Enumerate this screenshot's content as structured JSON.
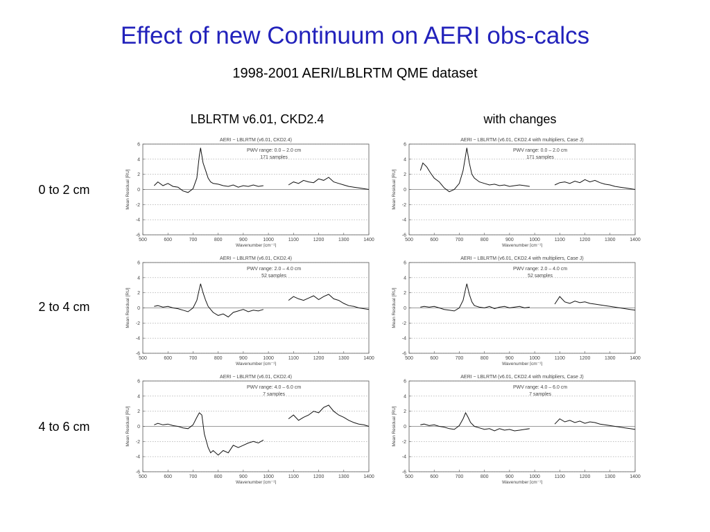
{
  "slide": {
    "title": "Effect of new Continuum on AERI obs-calcs",
    "subtitle": "1998-2001 AERI/LBLRTM QME dataset",
    "columns": [
      "LBLRTM v6.01, CKD2.4",
      "with changes"
    ],
    "rows": [
      "0 to 2 cm",
      "2 to 4 cm",
      "4 to 6 cm"
    ]
  },
  "chart_data": [
    {
      "type": "line",
      "title": "AERI − LBLRTM (v6.01, CKD2.4)",
      "annotation": [
        "PWV range: 0.0 – 2.0 cm",
        "171 samples"
      ],
      "xlabel": "Wavenumber [cm⁻¹]",
      "ylabel": "Mean Residual [RU]",
      "xlim": [
        500,
        1400
      ],
      "ylim": [
        -6,
        6
      ],
      "x": [
        545,
        560,
        580,
        600,
        620,
        640,
        660,
        680,
        700,
        715,
        725,
        730,
        740,
        750,
        760,
        770,
        780,
        800,
        820,
        840,
        860,
        880,
        900,
        920,
        940,
        960,
        980,
        1080,
        1100,
        1120,
        1140,
        1160,
        1180,
        1200,
        1220,
        1240,
        1260,
        1280,
        1300,
        1320,
        1340,
        1360,
        1380,
        1400
      ],
      "y": [
        0.5,
        1.0,
        0.5,
        0.8,
        0.4,
        0.3,
        -0.2,
        -0.4,
        0.1,
        1.5,
        4.5,
        5.5,
        3.5,
        2.5,
        1.5,
        1.0,
        0.8,
        0.7,
        0.5,
        0.4,
        0.6,
        0.3,
        0.5,
        0.4,
        0.6,
        0.4,
        0.5,
        0.6,
        1.0,
        0.8,
        1.2,
        1.0,
        0.9,
        1.4,
        1.2,
        1.6,
        1.0,
        0.8,
        0.6,
        0.4,
        0.3,
        0.2,
        0.1,
        0.0
      ]
    },
    {
      "type": "line",
      "title": "AERI − LBLRTM (v6.01, CKD2.4 with multipliers, Case J)",
      "annotation": [
        "PWV range: 0.0 – 2.0 cm",
        "171 samples"
      ],
      "xlabel": "Wavenumber [cm⁻¹]",
      "ylabel": "Mean Residual [RU]",
      "xlim": [
        500,
        1400
      ],
      "ylim": [
        -6,
        6
      ],
      "x": [
        545,
        555,
        570,
        585,
        600,
        620,
        640,
        660,
        680,
        700,
        715,
        725,
        730,
        740,
        750,
        760,
        780,
        800,
        820,
        840,
        860,
        880,
        900,
        920,
        940,
        960,
        980,
        1080,
        1100,
        1120,
        1140,
        1160,
        1180,
        1200,
        1220,
        1240,
        1260,
        1280,
        1300,
        1320,
        1340,
        1360,
        1380,
        1400
      ],
      "y": [
        2.5,
        3.5,
        3.0,
        2.2,
        1.5,
        1.0,
        0.2,
        -0.3,
        0.0,
        0.8,
        2.5,
        4.5,
        5.5,
        3.5,
        2.0,
        1.5,
        1.0,
        0.8,
        0.6,
        0.7,
        0.5,
        0.6,
        0.4,
        0.5,
        0.6,
        0.5,
        0.4,
        0.6,
        0.9,
        1.0,
        0.8,
        1.1,
        0.9,
        1.3,
        1.0,
        1.2,
        0.9,
        0.7,
        0.6,
        0.4,
        0.3,
        0.2,
        0.1,
        0.0
      ]
    },
    {
      "type": "line",
      "title": "AERI − LBLRTM (v6.01, CKD2.4)",
      "annotation": [
        "PWV range: 2.0 – 4.0 cm",
        "52 samples"
      ],
      "xlabel": "Wavenumber [cm⁻¹]",
      "ylabel": "Mean Residual [RU]",
      "xlim": [
        500,
        1400
      ],
      "ylim": [
        -6,
        6
      ],
      "x": [
        545,
        560,
        580,
        600,
        620,
        640,
        660,
        680,
        700,
        715,
        725,
        730,
        740,
        750,
        760,
        770,
        780,
        800,
        820,
        840,
        860,
        880,
        900,
        920,
        940,
        960,
        980,
        1080,
        1100,
        1120,
        1140,
        1160,
        1180,
        1200,
        1220,
        1240,
        1260,
        1280,
        1300,
        1320,
        1340,
        1360,
        1380,
        1400
      ],
      "y": [
        0.2,
        0.3,
        0.1,
        0.2,
        0.0,
        -0.1,
        -0.3,
        -0.5,
        0.0,
        1.0,
        2.5,
        3.2,
        2.0,
        1.0,
        0.2,
        -0.2,
        -0.6,
        -1.0,
        -0.8,
        -1.2,
        -0.6,
        -0.4,
        -0.2,
        -0.5,
        -0.3,
        -0.4,
        -0.2,
        1.0,
        1.5,
        1.2,
        1.0,
        1.3,
        1.6,
        1.1,
        1.5,
        1.8,
        1.2,
        1.0,
        0.6,
        0.3,
        0.2,
        0.0,
        -0.1,
        -0.2
      ]
    },
    {
      "type": "line",
      "title": "AERI − LBLRTM (v6.01, CKD2.4 with multipliers, Case J)",
      "annotation": [
        "PWV range: 2.0 – 4.0 cm",
        "52 samples"
      ],
      "xlabel": "Wavenumber [cm⁻¹]",
      "ylabel": "Mean Residual [RU]",
      "xlim": [
        500,
        1400
      ],
      "ylim": [
        -6,
        6
      ],
      "x": [
        545,
        560,
        580,
        600,
        620,
        640,
        660,
        680,
        700,
        715,
        725,
        730,
        740,
        750,
        760,
        780,
        800,
        820,
        840,
        860,
        880,
        900,
        920,
        940,
        960,
        980,
        1080,
        1100,
        1120,
        1140,
        1160,
        1180,
        1200,
        1220,
        1240,
        1260,
        1280,
        1300,
        1320,
        1340,
        1360,
        1380,
        1400
      ],
      "y": [
        0.1,
        0.2,
        0.1,
        0.2,
        0.0,
        -0.2,
        -0.3,
        -0.4,
        0.0,
        1.0,
        2.5,
        3.2,
        1.8,
        0.8,
        0.3,
        0.1,
        0.0,
        0.2,
        -0.1,
        0.1,
        0.2,
        0.0,
        0.1,
        0.2,
        0.0,
        0.1,
        0.5,
        1.5,
        0.8,
        0.6,
        0.9,
        0.7,
        0.8,
        0.6,
        0.5,
        0.4,
        0.3,
        0.2,
        0.1,
        0.0,
        -0.1,
        -0.2,
        -0.3
      ]
    },
    {
      "type": "line",
      "title": "AERI − LBLRTM (v6.01, CKD2.4)",
      "annotation": [
        "PWV range: 4.0 – 6.0 cm",
        "7 samples"
      ],
      "xlabel": "Wavenumber [cm⁻¹]",
      "ylabel": "Mean Residual [RU]",
      "xlim": [
        500,
        1400
      ],
      "ylim": [
        -6,
        6
      ],
      "x": [
        545,
        560,
        580,
        600,
        620,
        640,
        660,
        680,
        700,
        715,
        725,
        735,
        745,
        760,
        770,
        780,
        800,
        820,
        840,
        860,
        880,
        900,
        920,
        940,
        960,
        980,
        1080,
        1100,
        1120,
        1140,
        1160,
        1180,
        1200,
        1220,
        1240,
        1260,
        1280,
        1300,
        1320,
        1340,
        1360,
        1380,
        1400
      ],
      "y": [
        0.2,
        0.4,
        0.2,
        0.3,
        0.1,
        0.0,
        -0.2,
        -0.3,
        0.2,
        1.2,
        1.8,
        1.5,
        -1.0,
        -2.8,
        -3.5,
        -3.2,
        -3.8,
        -3.2,
        -3.5,
        -2.5,
        -2.8,
        -2.5,
        -2.2,
        -2.0,
        -2.2,
        -1.8,
        1.0,
        1.5,
        0.8,
        1.2,
        1.5,
        2.0,
        1.8,
        2.5,
        2.8,
        2.0,
        1.5,
        1.2,
        0.8,
        0.5,
        0.3,
        0.2,
        0.0
      ]
    },
    {
      "type": "line",
      "title": "AERI − LBLRTM (v6.01, CKD2.4 with multipliers, Case J)",
      "annotation": [
        "PWV range: 4.0 – 6.0 cm",
        "7 samples"
      ],
      "xlabel": "Wavenumber [cm⁻¹]",
      "ylabel": "Mean Residual [RU]",
      "xlim": [
        500,
        1400
      ],
      "ylim": [
        -6,
        6
      ],
      "x": [
        545,
        560,
        580,
        600,
        620,
        640,
        660,
        680,
        700,
        715,
        725,
        735,
        745,
        760,
        780,
        800,
        820,
        840,
        860,
        880,
        900,
        920,
        940,
        960,
        980,
        1080,
        1100,
        1120,
        1140,
        1160,
        1180,
        1200,
        1220,
        1240,
        1260,
        1280,
        1300,
        1320,
        1340,
        1360,
        1380,
        1400
      ],
      "y": [
        0.2,
        0.3,
        0.1,
        0.2,
        0.0,
        -0.1,
        -0.3,
        -0.4,
        0.1,
        1.0,
        1.8,
        1.2,
        0.5,
        0.0,
        -0.2,
        -0.4,
        -0.3,
        -0.6,
        -0.3,
        -0.5,
        -0.4,
        -0.6,
        -0.5,
        -0.4,
        -0.3,
        0.3,
        1.0,
        0.6,
        0.8,
        0.5,
        0.7,
        0.4,
        0.6,
        0.5,
        0.3,
        0.2,
        0.1,
        0.0,
        -0.1,
        -0.2,
        -0.3,
        -0.4
      ]
    }
  ]
}
